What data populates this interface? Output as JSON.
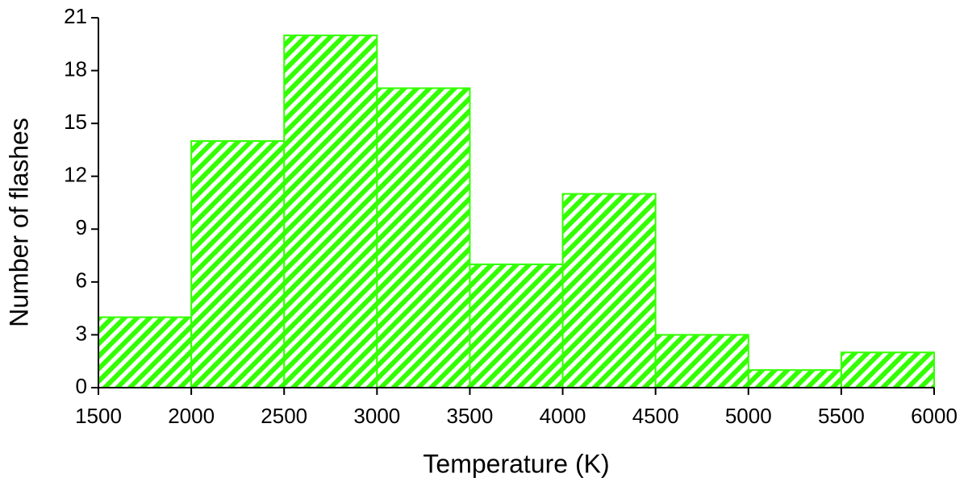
{
  "chart_data": {
    "type": "histogram",
    "x_label": "Temperature (K)",
    "y_label": "Number of flashes",
    "bins": [
      1500,
      2000,
      2500,
      3000,
      3500,
      4000,
      4500,
      5000,
      5500,
      6000
    ],
    "values": [
      4,
      14,
      20,
      17,
      7,
      11,
      3,
      1,
      2
    ],
    "color": "#33ff00",
    "xlim": [
      1500,
      6000
    ],
    "xticks": [
      1500,
      2000,
      2500,
      3000,
      3500,
      4000,
      4500,
      5000,
      5500,
      6000
    ],
    "ylim": [
      0,
      21
    ],
    "yticks": [
      0,
      3,
      6,
      9,
      12,
      15,
      18,
      21
    ],
    "grid": false
  }
}
